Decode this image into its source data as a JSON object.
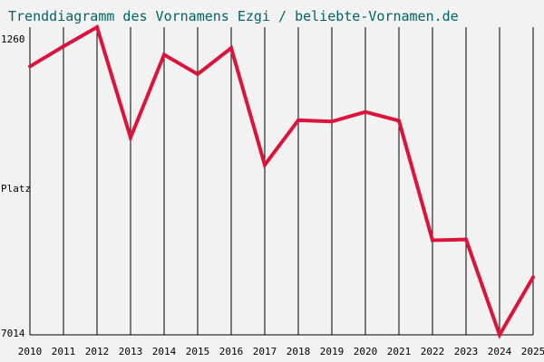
{
  "chart_data": {
    "type": "line",
    "title": "Trenddiagramm des Vornamens Ezgi / beliebte-Vornamen.de",
    "ylabel": "Platz",
    "y_top_label": "1260",
    "y_bottom_label": "7014",
    "y_inverted": true,
    "ylim": [
      1260,
      7014
    ],
    "categories": [
      "2010",
      "2011",
      "2012",
      "2013",
      "2014",
      "2015",
      "2016",
      "2017",
      "2018",
      "2019",
      "2020",
      "2021",
      "2022",
      "2023",
      "2024",
      "2025"
    ],
    "series": [
      {
        "values": [
          1995,
          1620,
          1260,
          3325,
          1775,
          2140,
          1650,
          3835,
          3000,
          3025,
          2845,
          3010,
          5245,
          5230,
          7014,
          5935
        ]
      }
    ],
    "grid": "vertical",
    "colors": {
      "line": "#dc143c",
      "grid": "#000000",
      "axis": "#000000",
      "text": "#000000",
      "title": "#006464",
      "background": "#f2f2f2"
    }
  }
}
